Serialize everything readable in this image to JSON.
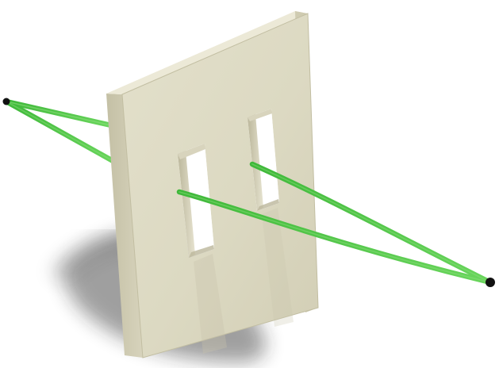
{
  "scene": {
    "colors": {
      "background": "#ffffff",
      "panel_front": "#dedbc4",
      "panel_front_shadowed": "#cfcbb2",
      "panel_side": "#c7c3a8",
      "panel_top": "#ece9d7",
      "slit_inner_dark": "#bdb89b",
      "slit_inner_light": "#e7e4d0",
      "rope_green": "#58c84a",
      "rope_highlight": "#8fe07f",
      "endpoint": "#111111",
      "shadow": "#1b1b1b"
    },
    "objects": {
      "panel": "double-slit-panel",
      "slits": 2,
      "endpoints": 2,
      "rope_paths": 2
    }
  }
}
